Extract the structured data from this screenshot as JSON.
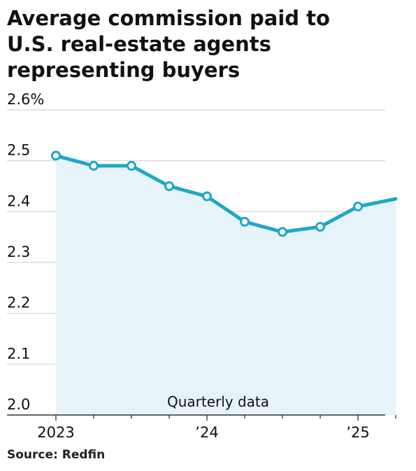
{
  "chart_data": {
    "type": "line",
    "title_lines": [
      "Average commission paid to",
      "U.S. real-estate agents",
      "representing buyers"
    ],
    "annotation": "Quarterly data",
    "source": "Source: Redfin",
    "x": [
      "2023 Q1",
      "2023 Q2",
      "2023 Q3",
      "2023 Q4",
      "2024 Q1",
      "2024 Q2",
      "2024 Q3",
      "2024 Q4",
      "2025 Q1",
      "2025 Q2"
    ],
    "series": [
      {
        "values": [
          2.51,
          2.49,
          2.49,
          2.45,
          2.43,
          2.38,
          2.36,
          2.37,
          2.41,
          2.425
        ],
        "markers": [
          true,
          true,
          true,
          true,
          true,
          true,
          true,
          true,
          true,
          false
        ]
      }
    ],
    "ylim": [
      2.0,
      2.6
    ],
    "yticks": [
      {
        "value": 2.6,
        "label": "2.6%"
      },
      {
        "value": 2.5,
        "label": "2.5"
      },
      {
        "value": 2.4,
        "label": "2.4"
      },
      {
        "value": 2.3,
        "label": "2.3"
      },
      {
        "value": 2.2,
        "label": "2.2"
      },
      {
        "value": 2.1,
        "label": "2.1"
      },
      {
        "value": 2.0,
        "label": "2.0"
      }
    ],
    "xticks": [
      {
        "label": "2023",
        "major": true
      },
      {
        "label": "",
        "major": false
      },
      {
        "label": "",
        "major": false
      },
      {
        "label": "",
        "major": false
      },
      {
        "label": "’24",
        "major": true
      },
      {
        "label": "",
        "major": false
      },
      {
        "label": "",
        "major": false
      },
      {
        "label": "",
        "major": false
      },
      {
        "label": "’25",
        "major": true
      },
      {
        "label": "",
        "major": false
      }
    ],
    "grid": true,
    "colors": {
      "line": "#1fa7c9",
      "area": "#e6f4f9",
      "grid": "#d5d5d5",
      "axis": "#333333",
      "marker_fill": "#ffffff"
    }
  }
}
